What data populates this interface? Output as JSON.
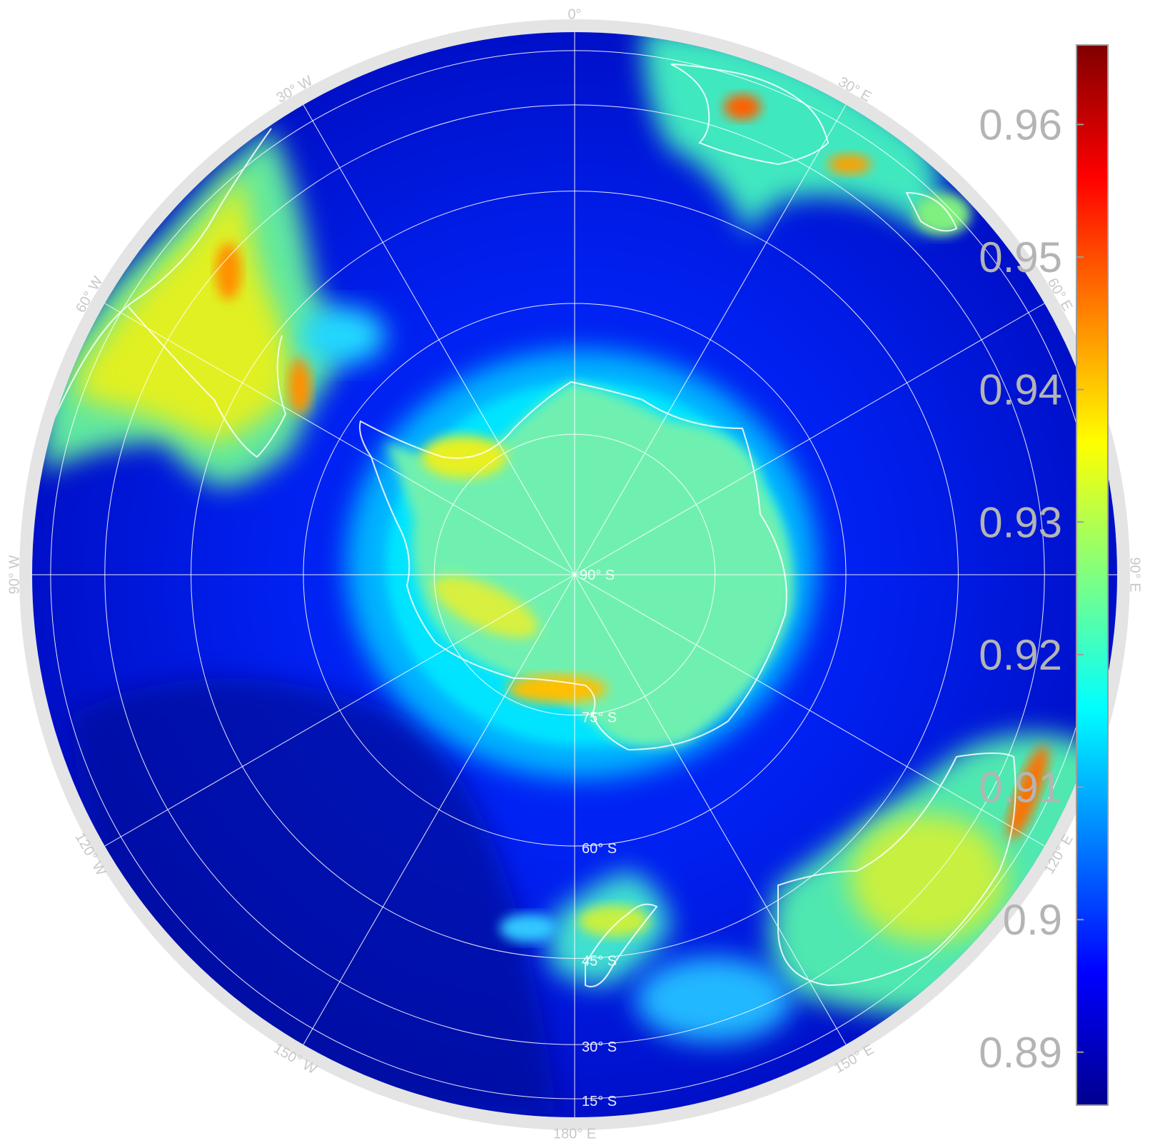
{
  "map": {
    "projection": "orthographic-south-polar",
    "center_label": "90° S",
    "longitude_labels": [
      {
        "text": "0°",
        "lon": 0
      },
      {
        "text": "30° E",
        "lon": 30
      },
      {
        "text": "60° E",
        "lon": 60
      },
      {
        "text": "90° E",
        "lon": 90
      },
      {
        "text": "120° E",
        "lon": 120
      },
      {
        "text": "150° E",
        "lon": 150
      },
      {
        "text": "180° E",
        "lon": 180
      },
      {
        "text": "150° W",
        "lon": -150
      },
      {
        "text": "120° W",
        "lon": -120
      },
      {
        "text": "90° W",
        "lon": -90
      },
      {
        "text": "60° W",
        "lon": -60
      },
      {
        "text": "30° W",
        "lon": -30
      }
    ],
    "latitude_labels": [
      {
        "text": "75° S",
        "lat": -75
      },
      {
        "text": "60° S",
        "lat": -60
      },
      {
        "text": "45° S",
        "lat": -45
      },
      {
        "text": "30° S",
        "lat": -30
      },
      {
        "text": "15° S",
        "lat": -15
      }
    ],
    "colors": {
      "ocean_low": "#0000a8",
      "ocean": "#0018e8",
      "shelf": "#00a0ff",
      "land": "#60f0a0",
      "high": "#f0f000",
      "peak": "#ff8000",
      "coast": "#ffffff",
      "frame": "#e4e4e4"
    }
  },
  "colorbar": {
    "min": 0.886,
    "max": 0.966,
    "ticks": [
      "0.89",
      "0.9",
      "0.91",
      "0.92",
      "0.93",
      "0.94",
      "0.95",
      "0.96"
    ],
    "tick_values": [
      0.89,
      0.9,
      0.91,
      0.92,
      0.93,
      0.94,
      0.95,
      0.96
    ],
    "colormap": "jet"
  }
}
